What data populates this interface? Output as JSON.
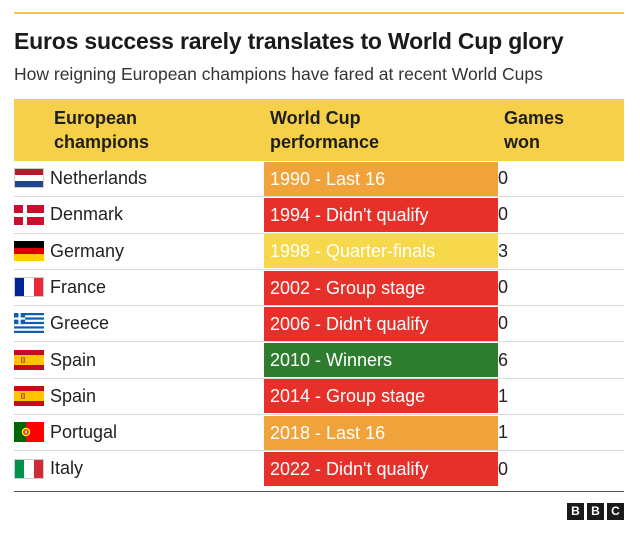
{
  "chart_data": {
    "type": "table",
    "title": "Euros success rarely translates to World Cup glory",
    "subtitle": "How reigning European champions have fared at recent World Cups",
    "columns": [
      [
        "European",
        "champions"
      ],
      [
        "World Cup",
        "performance"
      ],
      [
        "Games",
        "won"
      ]
    ],
    "rows": [
      {
        "country": "Netherlands",
        "flag": "netherlands-flag-icon",
        "performance": "1990 - Last 16",
        "games_won": "0",
        "color": "#f0a33a",
        "text_color": "#ffffff"
      },
      {
        "country": "Denmark",
        "flag": "denmark-flag-icon",
        "performance": "1994 - Didn't qualify",
        "games_won": "0",
        "color": "#e8302a",
        "text_color": "#ffffff"
      },
      {
        "country": "Germany",
        "flag": "germany-flag-icon",
        "performance": "1998 - Quarter-finals",
        "games_won": "3",
        "color": "#f6d84a",
        "text_color": "#ffffff"
      },
      {
        "country": "France",
        "flag": "france-flag-icon",
        "performance": "2002 - Group stage",
        "games_won": "0",
        "color": "#e8302a",
        "text_color": "#ffffff"
      },
      {
        "country": "Greece",
        "flag": "greece-flag-icon",
        "performance": "2006 - Didn't qualify",
        "games_won": "0",
        "color": "#e8302a",
        "text_color": "#ffffff"
      },
      {
        "country": "Spain",
        "flag": "spain-flag-icon",
        "performance": "2010 - Winners",
        "games_won": "6",
        "color": "#2e7d2e",
        "text_color": "#ffffff"
      },
      {
        "country": "Spain",
        "flag": "spain-flag-icon",
        "performance": "2014 - Group stage",
        "games_won": "1",
        "color": "#e8302a",
        "text_color": "#ffffff"
      },
      {
        "country": "Portugal",
        "flag": "portugal-flag-icon",
        "performance": "2018 - Last 16",
        "games_won": "1",
        "color": "#f0a33a",
        "text_color": "#ffffff"
      },
      {
        "country": "Italy",
        "flag": "italy-flag-icon",
        "performance": "2022 - Didn't qualify",
        "games_won": "0",
        "color": "#e8302a",
        "text_color": "#ffffff"
      }
    ],
    "header_color": "#f7d04a",
    "accent_rule_color": "#f5c842"
  },
  "footer": {
    "logo": [
      "B",
      "B",
      "C"
    ]
  }
}
